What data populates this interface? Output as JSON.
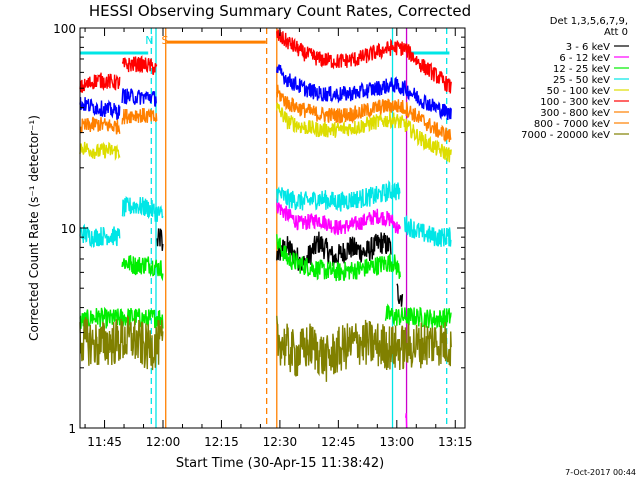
{
  "chart_data": {
    "type": "line",
    "title": "HESSI Observing Summary Count Rates, Corrected",
    "xlabel": "Start Time (30-Apr-15 11:38:42)",
    "ylabel": "Corrected Count Rate (s⁻¹ detector⁻¹)",
    "x_ticks": [
      "11:45",
      "12:00",
      "12:15",
      "12:30",
      "12:45",
      "13:00",
      "13:15"
    ],
    "x_tick_minutes": [
      705,
      720,
      735,
      750,
      765,
      780,
      795
    ],
    "xlim_minutes": [
      698.7,
      797.5
    ],
    "y_scale": "log",
    "ylim": [
      1,
      100
    ],
    "y_ticks": [
      1,
      10,
      100
    ],
    "legend_position": "right",
    "legend_header": [
      "Det 1,3,5,6,7,9,",
      "Att 0"
    ],
    "timestamp": "7-Oct-2017 00:44",
    "flags": [
      {
        "label": "N",
        "color": "#00e6e6",
        "minute": 716.5
      },
      {
        "label": "S",
        "color": "#ff8000",
        "minute": 720.5
      }
    ],
    "vertical_lines": [
      {
        "minute": 717.0,
        "color": "#00e6e6",
        "style": "dashed"
      },
      {
        "minute": 718.2,
        "color": "#00e6e6",
        "style": "solid"
      },
      {
        "minute": 720.7,
        "color": "#ff8000",
        "style": "solid"
      },
      {
        "minute": 746.6,
        "color": "#ff8000",
        "style": "dashed"
      },
      {
        "minute": 749.2,
        "color": "#ff8000",
        "style": "solid"
      },
      {
        "minute": 778.9,
        "color": "#00e6e6",
        "style": "solid"
      },
      {
        "minute": 792.8,
        "color": "#00e6e6",
        "style": "dashed"
      },
      {
        "minute": 782.5,
        "color": "#cc00cc",
        "style": "solid"
      }
    ],
    "flag_bars": [
      {
        "color": "#00e6e6",
        "value": 75,
        "segments": [
          [
            698.7,
            716.2
          ],
          [
            783.0,
            793.5
          ]
        ]
      },
      {
        "color": "#ff8000",
        "value": 85,
        "segments": [
          [
            721.0,
            746.4
          ]
        ]
      }
    ],
    "series": [
      {
        "name": "3 - 6 keV",
        "color": "#000000",
        "noise": 0.06,
        "segments": [
          [
            [
              718.5,
              8.5
            ],
            [
              719.5,
              9.0
            ],
            [
              720.0,
              7.5
            ]
          ],
          [
            [
              749.2,
              7.5
            ],
            [
              752,
              8.0
            ],
            [
              756,
              6.5
            ],
            [
              760,
              8.5
            ],
            [
              764,
              7.0
            ],
            [
              768,
              8.0
            ],
            [
              772,
              7.5
            ],
            [
              776,
              8.5
            ],
            [
              778.5,
              8.0
            ]
          ],
          [
            [
              780.0,
              4.8
            ],
            [
              781.5,
              4.5
            ]
          ]
        ]
      },
      {
        "name": "6 - 12 keV",
        "color": "#ff00ff",
        "noise": 0.04,
        "segments": [
          [
            [
              749.2,
              13.0
            ],
            [
              751,
              12.0
            ],
            [
              755,
              10.5
            ],
            [
              760,
              11.0
            ],
            [
              765,
              10.0
            ],
            [
              770,
              10.5
            ],
            [
              775,
              11.5
            ],
            [
              778.5,
              11.0
            ],
            [
              781,
              9.5
            ]
          ],
          [
            [
              782.3,
              1.2
            ],
            [
              782.6,
              1.0
            ]
          ]
        ]
      },
      {
        "name": "12 - 25 keV",
        "color": "#00ee00",
        "noise": 0.05,
        "segments": [
          [
            [
              698.7,
              3.4
            ],
            [
              703,
              3.6
            ],
            [
              706,
              3.5
            ],
            [
              712,
              3.6
            ],
            [
              716,
              3.5
            ],
            [
              719,
              3.6
            ],
            [
              720,
              3.5
            ]
          ],
          [
            [
              709.5,
              6.8
            ],
            [
              713,
              6.5
            ],
            [
              716.5,
              6.6
            ],
            [
              720,
              6.2
            ]
          ],
          [
            [
              749.2,
              8.5
            ],
            [
              752,
              7.0
            ],
            [
              756,
              6.5
            ],
            [
              760,
              6.2
            ],
            [
              765,
              6.0
            ],
            [
              770,
              6.2
            ],
            [
              775,
              6.5
            ],
            [
              779,
              6.8
            ],
            [
              781,
              6.0
            ]
          ],
          [
            [
              777,
              3.7
            ],
            [
              780,
              3.6
            ],
            [
              785,
              3.6
            ],
            [
              790,
              3.5
            ],
            [
              794,
              3.6
            ]
          ]
        ]
      },
      {
        "name": "25 - 50 keV",
        "color": "#00e6e6",
        "noise": 0.05,
        "segments": [
          [
            [
              698.7,
              9.5
            ],
            [
              702,
              9.0
            ],
            [
              706,
              9.2
            ],
            [
              709,
              9.0
            ]
          ],
          [
            [
              709.5,
              12.5
            ],
            [
              713,
              13.0
            ],
            [
              716.5,
              12.5
            ],
            [
              720,
              11.5
            ]
          ],
          [
            [
              749.2,
              15.0
            ],
            [
              752,
              14.0
            ],
            [
              756,
              13.5
            ],
            [
              760,
              14.0
            ],
            [
              765,
              13.5
            ],
            [
              770,
              14.0
            ],
            [
              775,
              14.5
            ],
            [
              779,
              15.5
            ],
            [
              781,
              15.0
            ]
          ],
          [
            [
              782,
              10.5
            ],
            [
              786,
              9.5
            ],
            [
              790,
              9.0
            ],
            [
              794,
              9.0
            ]
          ]
        ]
      },
      {
        "name": "50 - 100 keV",
        "color": "#dddd00",
        "noise": 0.04,
        "segments": [
          [
            [
              698.7,
              25.5
            ],
            [
              703,
              24.0
            ],
            [
              706,
              24.5
            ],
            [
              709,
              24.0
            ]
          ],
          [
            [
              749.2,
              40.0
            ],
            [
              752,
              34.0
            ],
            [
              756,
              32.0
            ],
            [
              760,
              31.0
            ],
            [
              765,
              31.0
            ],
            [
              770,
              32.0
            ],
            [
              775,
              34.0
            ],
            [
              779,
              35.0
            ],
            [
              782,
              33.0
            ],
            [
              786,
              28.0
            ],
            [
              790,
              25.0
            ],
            [
              794,
              23.0
            ]
          ]
        ]
      },
      {
        "name": "100 - 300 keV",
        "color": "#ff0000",
        "noise": 0.04,
        "segments": [
          [
            [
              698.7,
              50.0
            ],
            [
              703,
              55.0
            ],
            [
              706,
              54.0
            ],
            [
              709,
              53.0
            ]
          ],
          [
            [
              709.5,
              65.0
            ],
            [
              713,
              66.0
            ],
            [
              716.5,
              65.0
            ],
            [
              718.5,
              62.0
            ]
          ],
          [
            [
              749.2,
              92.0
            ],
            [
              752,
              85.0
            ],
            [
              756,
              75.0
            ],
            [
              760,
              70.0
            ],
            [
              765,
              68.0
            ],
            [
              770,
              70.0
            ],
            [
              775,
              76.0
            ],
            [
              779,
              80.0
            ],
            [
              782,
              79.0
            ],
            [
              786,
              66.0
            ],
            [
              790,
              58.0
            ],
            [
              794,
              50.0
            ]
          ]
        ]
      },
      {
        "name": "300 - 800 keV",
        "color": "#ff8000",
        "noise": 0.04,
        "segments": [
          [
            [
              698.7,
              32.0
            ],
            [
              703,
              33.0
            ],
            [
              706,
              32.5
            ],
            [
              709,
              32.0
            ]
          ],
          [
            [
              709.5,
              36.0
            ],
            [
              713,
              37.0
            ],
            [
              716.5,
              36.0
            ],
            [
              718.5,
              35.0
            ]
          ],
          [
            [
              749.2,
              48.0
            ],
            [
              752,
              42.0
            ],
            [
              756,
              39.0
            ],
            [
              760,
              37.0
            ],
            [
              765,
              36.5
            ],
            [
              770,
              37.5
            ],
            [
              775,
              40.0
            ],
            [
              779,
              41.0
            ],
            [
              782,
              40.0
            ],
            [
              786,
              35.0
            ],
            [
              790,
              31.0
            ],
            [
              794,
              28.5
            ]
          ]
        ]
      },
      {
        "name": "800 - 7000 keV",
        "color": "#ff8000",
        "noise": 0.03,
        "dupe_of": 6,
        "segments": []
      },
      {
        "name": "7000 - 20000 keV",
        "color": "#808000",
        "noise": 0.12,
        "segments": [
          [
            [
              698.7,
              2.8
            ],
            [
              703,
              2.6
            ],
            [
              708,
              2.7
            ],
            [
              712,
              2.8
            ],
            [
              716,
              2.5
            ],
            [
              720,
              2.7
            ]
          ],
          [
            [
              749.2,
              2.8
            ],
            [
              754,
              2.3
            ],
            [
              758,
              2.6
            ],
            [
              762,
              2.2
            ],
            [
              766,
              2.5
            ],
            [
              770,
              2.7
            ],
            [
              775,
              2.6
            ],
            [
              780,
              2.5
            ],
            [
              785,
              2.6
            ],
            [
              790,
              2.7
            ],
            [
              794,
              2.6
            ]
          ]
        ]
      }
    ],
    "blue_series": {
      "name": "",
      "color": "#0000ff",
      "noise": 0.04,
      "segments": [
        [
          [
            698.7,
            42.0
          ],
          [
            703,
            40.0
          ],
          [
            706,
            39.0
          ],
          [
            709,
            38.0
          ]
        ],
        [
          [
            709.5,
            46.0
          ],
          [
            713,
            45.0
          ],
          [
            716.5,
            45.5
          ],
          [
            718.5,
            44.0
          ]
        ],
        [
          [
            749.2,
            62.0
          ],
          [
            752,
            55.0
          ],
          [
            756,
            50.0
          ],
          [
            760,
            47.0
          ],
          [
            765,
            46.5
          ],
          [
            770,
            47.5
          ],
          [
            775,
            50.0
          ],
          [
            779,
            52.0
          ],
          [
            782,
            50.0
          ],
          [
            786,
            44.0
          ],
          [
            790,
            40.0
          ],
          [
            794,
            37.0
          ]
        ]
      ]
    }
  }
}
